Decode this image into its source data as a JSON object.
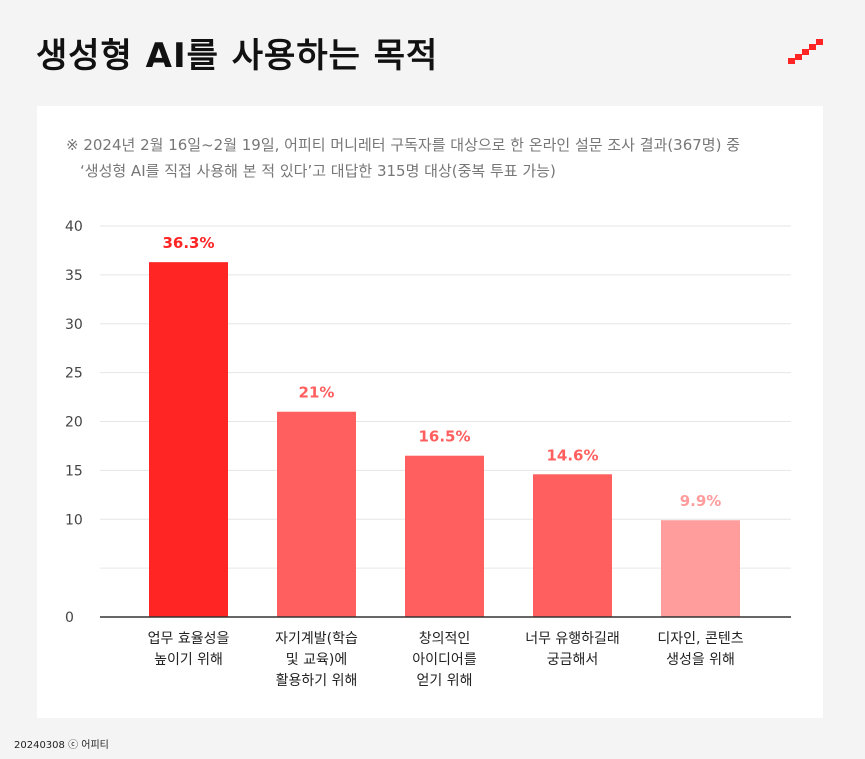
{
  "title": "생성형 AI를 사용하는 목적",
  "note": {
    "line1": "※ 2024년 2월 16일~2월 19일, 어피티 머니레터 구독자를 대상으로 한 온라인 설문 조사 결과(367명) 중",
    "line2": "‘생성형 AI를 직접 사용해 본 적 있다’고 대답한 315명 대상(중복 투표 가능)"
  },
  "footer": {
    "date": "20240308",
    "copyright": "ⓒ",
    "brand": "어피티"
  },
  "colors": {
    "primary": "#ff2525",
    "mid": "#ff5f5f",
    "light": "#ff9d9d",
    "grid": "#e6e6e6",
    "axis": "#333333"
  },
  "chart_data": {
    "type": "bar",
    "categories": [
      [
        "업무 효율성을",
        "높이기 위해"
      ],
      [
        "자기계발(학습",
        "및 교육)에",
        "활용하기 위해"
      ],
      [
        "창의적인",
        "아이디어를",
        "얻기 위해"
      ],
      [
        "너무 유행하길래",
        "궁금해서"
      ],
      [
        "디자인, 콘텐츠",
        "생성을 위해"
      ]
    ],
    "values": [
      36.3,
      21,
      16.5,
      14.6,
      9.9
    ],
    "value_labels": [
      "36.3%",
      "21%",
      "16.5%",
      "14.6%",
      "9.9%"
    ],
    "bar_colors": [
      "#ff2525",
      "#ff5f5f",
      "#ff5f5f",
      "#ff5f5f",
      "#ff9d9d"
    ],
    "label_colors": [
      "#ff2525",
      "#ff5f5f",
      "#ff5f5f",
      "#ff5f5f",
      "#ff9d9d"
    ],
    "ylim": [
      0,
      40
    ],
    "yticks": [
      0,
      10,
      15,
      20,
      25,
      30,
      35,
      40
    ],
    "grid": true,
    "xlabel": "",
    "ylabel": ""
  }
}
